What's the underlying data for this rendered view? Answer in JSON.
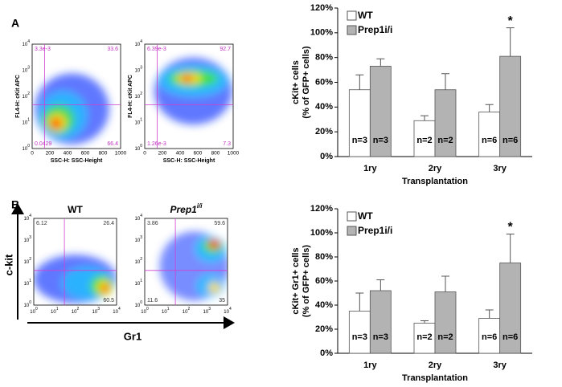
{
  "panel_labels": [
    "A",
    "B"
  ],
  "flow_axes": {
    "ylabel": "c-kit",
    "xlabel": "Gr1"
  },
  "flow_plots": [
    {
      "ylabel": "FL4-H: cKit APC",
      "xlabel": "SSC-H: SSC-Height",
      "xticks": [
        "0",
        "200",
        "400",
        "600",
        "800",
        "1000"
      ],
      "tick_base": "10",
      "yticks": [
        "0",
        "1",
        "2",
        "3",
        "4"
      ],
      "quadrants": {
        "ul": "3.3e-3",
        "ur": "33.6",
        "ll": "0.0429",
        "lr": "66.4"
      }
    },
    {
      "ylabel": "FL4-H: cKit APC",
      "xlabel": "SSC-H: SSC-Height",
      "xticks": [
        "0",
        "200",
        "400",
        "600",
        "800",
        "1000"
      ],
      "tick_base": "10",
      "yticks": [
        "0",
        "1",
        "2",
        "3",
        "4"
      ],
      "quadrants": {
        "ul": "6.39e-3",
        "ur": "92.7",
        "ll": "1.26e-3",
        "lr": "7.3"
      }
    },
    {
      "title": "WT",
      "tick_base": "10",
      "xticks_exp": [
        "0",
        "1",
        "2",
        "3",
        "4"
      ],
      "yticks": [
        "0",
        "1",
        "2",
        "3",
        "4"
      ],
      "quadrants": {
        "ul": "6.12",
        "ur": "26.4",
        "lr": "60.5"
      }
    },
    {
      "title": "Prep1",
      "title_sup": "i/i",
      "tick_base": "10",
      "xticks_exp": [
        "0",
        "1",
        "2",
        "3",
        "4"
      ],
      "yticks": [
        "0",
        "1",
        "2",
        "3",
        "4"
      ],
      "quadrants": {
        "ul": "3.86",
        "ur": "59.6",
        "ll": "11.6",
        "lr": "35"
      }
    }
  ],
  "chart_data": [
    {
      "type": "bar",
      "ylabel": [
        "cKit+ cells",
        "(% of GFP+ cells)"
      ],
      "xlabel": "Transplantation",
      "categories": [
        "1ry",
        "2ry",
        "3ry"
      ],
      "ylim": [
        0,
        120
      ],
      "yticks": [
        {
          "value": 0,
          "label": "0%"
        },
        {
          "value": 20,
          "label": "20%"
        },
        {
          "value": 40,
          "label": "40%"
        },
        {
          "value": 60,
          "label": "60%"
        },
        {
          "value": 80,
          "label": "80%"
        },
        {
          "value": 100,
          "label": "100%"
        },
        {
          "value": 120,
          "label": "120%"
        }
      ],
      "series": [
        {
          "name": "WT",
          "color": "#ffffff",
          "values": [
            54,
            29,
            36
          ],
          "errors": [
            12,
            4,
            6
          ],
          "n_labels": [
            "n=3",
            "n=2",
            "n=6"
          ]
        },
        {
          "name": "Prep1i/i",
          "color": "#b3b3b3",
          "values": [
            73,
            54,
            81
          ],
          "errors": [
            6,
            13,
            23
          ],
          "n_labels": [
            "n=3",
            "n=2",
            "n=6"
          ],
          "marks": [
            null,
            null,
            "*"
          ]
        }
      ]
    },
    {
      "type": "bar",
      "ylabel": [
        "cKit+ Gr1+ cells",
        "(% of GFP+ cells)"
      ],
      "xlabel": "Transplantation",
      "categories": [
        "1ry",
        "2ry",
        "3ry"
      ],
      "ylim": [
        0,
        120
      ],
      "yticks": [
        {
          "value": 0,
          "label": "0%"
        },
        {
          "value": 20,
          "label": "20%"
        },
        {
          "value": 40,
          "label": "40%"
        },
        {
          "value": 60,
          "label": "60%"
        },
        {
          "value": 80,
          "label": "80%"
        },
        {
          "value": 100,
          "label": "100%"
        },
        {
          "value": 120,
          "label": "120%"
        }
      ],
      "series": [
        {
          "name": "WT",
          "color": "#ffffff",
          "values": [
            35,
            25,
            29
          ],
          "errors": [
            15,
            2,
            7
          ],
          "n_labels": [
            "n=3",
            "n=2",
            "n=6"
          ]
        },
        {
          "name": "Prep1i/i",
          "color": "#b3b3b3",
          "values": [
            52,
            51,
            75
          ],
          "errors": [
            9,
            13,
            24
          ],
          "n_labels": [
            "n=3",
            "n=2",
            "n=6"
          ],
          "marks": [
            null,
            null,
            "*"
          ]
        }
      ]
    }
  ]
}
